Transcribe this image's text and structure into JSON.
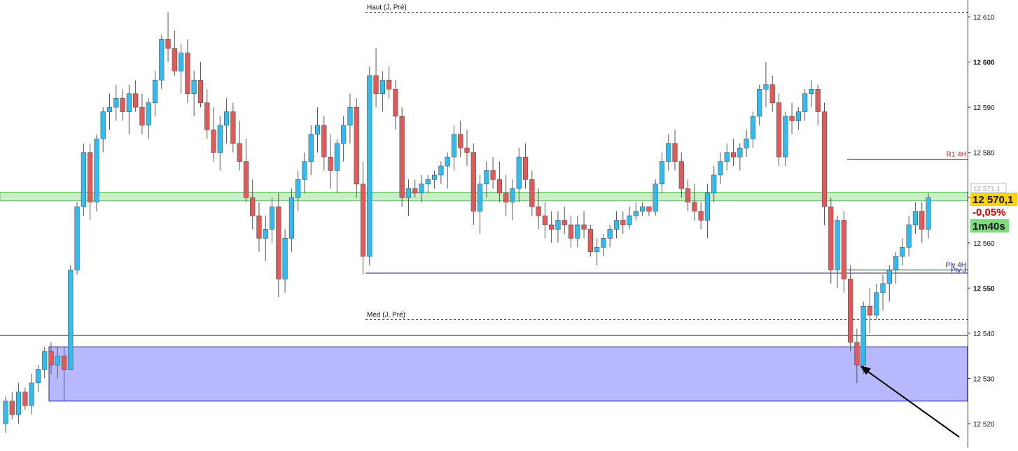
{
  "chart_data": {
    "type": "candlestick",
    "ylim": [
      12517,
      12614
    ],
    "y_ticks": [
      "12 520",
      "12 530",
      "12 540",
      "12 550",
      "12 560",
      "12 570",
      "12 580",
      "12 590",
      "12 600",
      "12 610"
    ],
    "y_tick_values": [
      12520,
      12530,
      12540,
      12550,
      12560,
      12570,
      12580,
      12590,
      12600,
      12610
    ],
    "bold_ticks": [
      12600,
      12550
    ],
    "candles": [
      [
        12520,
        12526,
        12518,
        12525
      ],
      [
        12525,
        12527,
        12521,
        12522
      ],
      [
        12522,
        12529,
        12520,
        12527
      ],
      [
        12527,
        12528,
        12523,
        12524
      ],
      [
        12524,
        12531,
        12522,
        12529
      ],
      [
        12529,
        12533,
        12527,
        12532
      ],
      [
        12532,
        12537,
        12530,
        12536
      ],
      [
        12536,
        12538,
        12531,
        12533
      ],
      [
        12533,
        12537,
        12530,
        12535
      ],
      [
        12535,
        12537,
        12525,
        12532
      ],
      [
        12532,
        12555,
        12532,
        12554
      ],
      [
        12554,
        12569,
        12553,
        12568
      ],
      [
        12568,
        12582,
        12566,
        12580
      ],
      [
        12580,
        12582,
        12565,
        12569
      ],
      [
        12569,
        12584,
        12567,
        12583
      ],
      [
        12583,
        12590,
        12580,
        12589
      ],
      [
        12589,
        12593,
        12585,
        12590
      ],
      [
        12590,
        12595,
        12587,
        12592
      ],
      [
        12592,
        12594,
        12587,
        12589
      ],
      [
        12589,
        12595,
        12584,
        12593
      ],
      [
        12593,
        12596,
        12589,
        12590
      ],
      [
        12590,
        12593,
        12584,
        12586
      ],
      [
        12586,
        12592,
        12583,
        12591
      ],
      [
        12591,
        12598,
        12588,
        12596
      ],
      [
        12596,
        12606,
        12594,
        12605
      ],
      [
        12605,
        12611,
        12600,
        12603
      ],
      [
        12603,
        12607,
        12597,
        12598
      ],
      [
        12598,
        12604,
        12593,
        12602
      ],
      [
        12602,
        12605,
        12591,
        12593
      ],
      [
        12593,
        12598,
        12588,
        12596
      ],
      [
        12596,
        12600,
        12590,
        12591
      ],
      [
        12591,
        12594,
        12583,
        12585
      ],
      [
        12585,
        12590,
        12578,
        12580
      ],
      [
        12580,
        12588,
        12576,
        12586
      ],
      [
        12586,
        12592,
        12582,
        12589
      ],
      [
        12589,
        12591,
        12580,
        12582
      ],
      [
        12582,
        12587,
        12576,
        12578
      ],
      [
        12578,
        12583,
        12569,
        12570
      ],
      [
        12570,
        12574,
        12563,
        12566
      ],
      [
        12566,
        12569,
        12558,
        12561
      ],
      [
        12561,
        12566,
        12556,
        12563
      ],
      [
        12563,
        12570,
        12560,
        12568
      ],
      [
        12568,
        12571,
        12548,
        12552
      ],
      [
        12552,
        12563,
        12549,
        12561
      ],
      [
        12561,
        12572,
        12558,
        12570
      ],
      [
        12570,
        12576,
        12567,
        12574
      ],
      [
        12574,
        12580,
        12571,
        12578
      ],
      [
        12578,
        12586,
        12575,
        12584
      ],
      [
        12584,
        12590,
        12580,
        12586
      ],
      [
        12586,
        12588,
        12576,
        12579
      ],
      [
        12579,
        12584,
        12572,
        12576
      ],
      [
        12576,
        12583,
        12571,
        12582
      ],
      [
        12582,
        12588,
        12578,
        12586
      ],
      [
        12586,
        12593,
        12582,
        12590
      ],
      [
        12590,
        12592,
        12570,
        12573
      ],
      [
        12573,
        12578,
        12553,
        12557
      ],
      [
        12557,
        12599,
        12555,
        12597
      ],
      [
        12597,
        12603,
        12590,
        12593
      ],
      [
        12593,
        12598,
        12589,
        12596
      ],
      [
        12596,
        12599,
        12592,
        12594
      ],
      [
        12594,
        12596,
        12585,
        12588
      ],
      [
        12588,
        12590,
        12568,
        12570
      ],
      [
        12570,
        12574,
        12566,
        12572
      ],
      [
        12572,
        12574,
        12570,
        12571
      ],
      [
        12571,
        12575,
        12569,
        12573
      ],
      [
        12573,
        12575,
        12571,
        12574
      ],
      [
        12574,
        12576,
        12572,
        12575
      ],
      [
        12575,
        12578,
        12573,
        12577
      ],
      [
        12577,
        12580,
        12572,
        12579
      ],
      [
        12579,
        12586,
        12576,
        12584
      ],
      [
        12584,
        12587,
        12579,
        12581
      ],
      [
        12581,
        12585,
        12577,
        12580
      ],
      [
        12580,
        12582,
        12564,
        12567
      ],
      [
        12567,
        12575,
        12562,
        12573
      ],
      [
        12573,
        12578,
        12570,
        12576
      ],
      [
        12576,
        12579,
        12572,
        12574
      ],
      [
        12574,
        12578,
        12569,
        12571
      ],
      [
        12571,
        12575,
        12566,
        12569
      ],
      [
        12569,
        12574,
        12565,
        12572
      ],
      [
        12572,
        12581,
        12569,
        12579
      ],
      [
        12579,
        12582,
        12572,
        12574
      ],
      [
        12574,
        12576,
        12566,
        12568
      ],
      [
        12568,
        12572,
        12563,
        12566
      ],
      [
        12566,
        12569,
        12561,
        12564
      ],
      [
        12564,
        12567,
        12560,
        12563
      ],
      [
        12563,
        12567,
        12560,
        12565
      ],
      [
        12565,
        12568,
        12562,
        12564
      ],
      [
        12564,
        12566,
        12559,
        12561
      ],
      [
        12561,
        12566,
        12559,
        12564
      ],
      [
        12564,
        12567,
        12561,
        12563
      ],
      [
        12563,
        12564,
        12557,
        12558
      ],
      [
        12558,
        12561,
        12555,
        12559
      ],
      [
        12559,
        12562,
        12557,
        12561
      ],
      [
        12561,
        12564,
        12559,
        12563
      ],
      [
        12563,
        12567,
        12561,
        12565
      ],
      [
        12565,
        12567,
        12562,
        12564
      ],
      [
        12564,
        12568,
        12563,
        12566
      ],
      [
        12566,
        12569,
        12565,
        12567
      ],
      [
        12567,
        12569,
        12566,
        12568
      ],
      [
        12568,
        12568,
        12566,
        12567
      ],
      [
        12567,
        12574,
        12566,
        12573
      ],
      [
        12573,
        12580,
        12571,
        12578
      ],
      [
        12578,
        12584,
        12576,
        12582
      ],
      [
        12582,
        12585,
        12576,
        12578
      ],
      [
        12578,
        12580,
        12570,
        12572
      ],
      [
        12572,
        12574,
        12567,
        12569
      ],
      [
        12569,
        12573,
        12565,
        12567
      ],
      [
        12567,
        12569,
        12563,
        12565
      ],
      [
        12565,
        12573,
        12561,
        12571
      ],
      [
        12571,
        12577,
        12569,
        12575
      ],
      [
        12575,
        12580,
        12573,
        12578
      ],
      [
        12578,
        12582,
        12576,
        12580
      ],
      [
        12580,
        12583,
        12577,
        12579
      ],
      [
        12579,
        12582,
        12576,
        12581
      ],
      [
        12581,
        12585,
        12579,
        12583
      ],
      [
        12583,
        12589,
        12581,
        12588
      ],
      [
        12588,
        12595,
        12586,
        12594
      ],
      [
        12594,
        12600,
        12590,
        12595
      ],
      [
        12595,
        12597,
        12589,
        12591
      ],
      [
        12591,
        12593,
        12577,
        12579
      ],
      [
        12579,
        12589,
        12577,
        12588
      ],
      [
        12588,
        12591,
        12584,
        12587
      ],
      [
        12587,
        12590,
        12585,
        12589
      ],
      [
        12589,
        12594,
        12587,
        12593
      ],
      [
        12593,
        12596,
        12590,
        12594
      ],
      [
        12594,
        12595,
        12586,
        12589
      ],
      [
        12589,
        12591,
        12564,
        12568
      ],
      [
        12568,
        12570,
        12551,
        12554
      ],
      [
        12554,
        12566,
        12550,
        12565
      ],
      [
        12565,
        12567,
        12549,
        12552
      ],
      [
        12552,
        12555,
        12536,
        12538
      ],
      [
        12538,
        12541,
        12529,
        12533
      ],
      [
        12533,
        12547,
        12531,
        12546
      ],
      [
        12546,
        12550,
        12540,
        12544
      ],
      [
        12544,
        12551,
        12543,
        12549
      ],
      [
        12549,
        12553,
        12545,
        12551
      ],
      [
        12551,
        12555,
        12547,
        12554
      ],
      [
        12554,
        12558,
        12551,
        12557
      ],
      [
        12557,
        12561,
        12555,
        12559
      ],
      [
        12559,
        12566,
        12557,
        12564
      ],
      [
        12564,
        12569,
        12562,
        12567
      ],
      [
        12567,
        12569,
        12560,
        12563
      ],
      [
        12563,
        12571,
        12561,
        12570
      ]
    ],
    "colors": {
      "up": "#33bbee",
      "down": "#e05a5a",
      "wick": "#555555"
    }
  },
  "levels": {
    "haut_label": "Haut (J, Pré)",
    "med_label": "Méd (J, Pré)",
    "r1_label": "R1 4H",
    "piv4h_label": "Piv 4H",
    "piv_label": "Piv J",
    "haut": 12611,
    "med": 12543,
    "r1": 12578.5,
    "piv4h": 12554,
    "piv": 12553.3,
    "line_black": 12539.5,
    "zone_green": [
      12569.3,
      12571.2
    ],
    "zone_blue": [
      12525,
      12537
    ]
  },
  "price_box": {
    "faint_price": "12 571,1",
    "current_price": "12 570,1",
    "change_pct": "-0,05%",
    "timer": "1m40s"
  },
  "colors": {
    "green_zone": "#c7f0c4",
    "blue_zone": "#b8b8ff",
    "pivot_blue": "#1c1cb8",
    "r1_red": "#cc2222",
    "price_yellow": "#ffd200",
    "change_red": "#cc0000",
    "timer_green": "#7ddc7d"
  }
}
